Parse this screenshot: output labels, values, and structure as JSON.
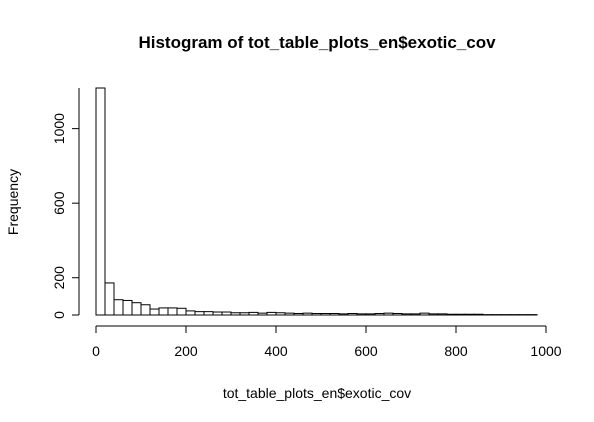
{
  "chart_data": {
    "type": "bar",
    "title": "Histogram of tot_table_plots_en$exotic_cov",
    "xlabel": "tot_table_plots_en$exotic_cov",
    "ylabel": "Frequency",
    "bin_width": 20,
    "bin_edges_start": 0,
    "values": [
      1218,
      172,
      82,
      78,
      66,
      55,
      32,
      38,
      38,
      36,
      22,
      18,
      18,
      16,
      16,
      12,
      12,
      14,
      10,
      14,
      12,
      10,
      8,
      10,
      8,
      8,
      8,
      6,
      8,
      6,
      6,
      8,
      10,
      8,
      6,
      6,
      10,
      6,
      6,
      4,
      4,
      4,
      4,
      2,
      2,
      2,
      2,
      2,
      2
    ],
    "xlim": [
      0,
      1000
    ],
    "ylim": [
      0,
      1218
    ],
    "x_ticks": [
      0,
      200,
      400,
      600,
      800,
      1000
    ],
    "y_ticks": [
      0,
      200,
      600,
      1000
    ],
    "grid": false
  }
}
